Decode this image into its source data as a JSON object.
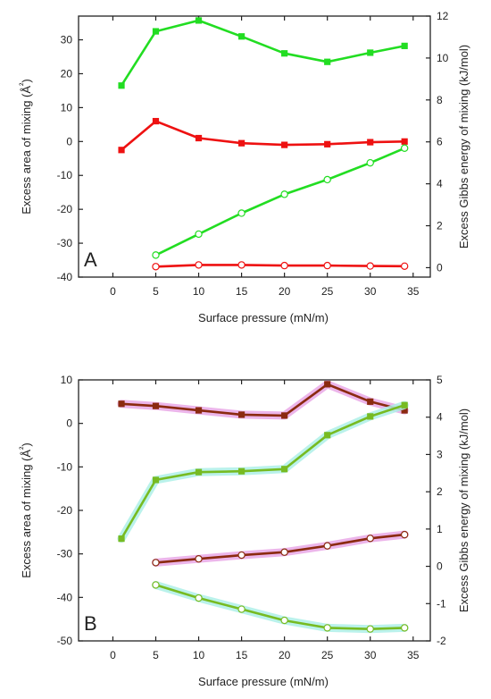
{
  "chart_data": [
    {
      "type": "line",
      "panel_label": "A",
      "xlabel": "Surface pressure (mN/m)",
      "ylabel_left": "Excess area of mixing (Å²)",
      "ylabel_right": "Excess Gibbs energy of mixing (kJ/mol)",
      "xlim": [
        -4,
        37
      ],
      "ylim_left": [
        -40,
        37
      ],
      "ylim_right": [
        -0.45,
        12
      ],
      "x_ticks": [
        0,
        5,
        10,
        15,
        20,
        25,
        30,
        35
      ],
      "y_ticks_left": [
        -40,
        -30,
        -20,
        -10,
        0,
        10,
        20,
        30
      ],
      "y_ticks_right": [
        0,
        2,
        4,
        6,
        8,
        10,
        12
      ],
      "grid": false,
      "series": [
        {
          "axis": "left",
          "marker": "square-filled",
          "color": "#22dd22",
          "x": [
            1,
            5,
            10,
            15,
            20,
            25,
            30,
            34
          ],
          "y": [
            16.5,
            32.5,
            35.7,
            31,
            26,
            23.5,
            26.2,
            28.2
          ]
        },
        {
          "axis": "left",
          "marker": "square-filled",
          "color": "#ee1111",
          "x": [
            1,
            5,
            10,
            15,
            20,
            25,
            30,
            34
          ],
          "y": [
            -2.5,
            6,
            1,
            -0.5,
            -1,
            -0.8,
            -0.2,
            0
          ]
        },
        {
          "axis": "right",
          "marker": "circle-open",
          "color": "#22dd22",
          "x": [
            5,
            10,
            15,
            20,
            25,
            30,
            34
          ],
          "y": [
            0.6,
            1.6,
            2.6,
            3.5,
            4.2,
            5.0,
            5.7
          ]
        },
        {
          "axis": "right",
          "marker": "circle-open",
          "color": "#ee1111",
          "x": [
            5,
            10,
            15,
            20,
            25,
            30,
            34
          ],
          "y": [
            0.05,
            0.13,
            0.13,
            0.1,
            0.1,
            0.08,
            0.07
          ]
        }
      ]
    },
    {
      "type": "line",
      "panel_label": "B",
      "xlabel": "Surface pressure (mN/m)",
      "ylabel_left": "Excess area of mixing (Å²)",
      "ylabel_right": "Excess Gibbs energy of mixing (kJ/mol)",
      "xlim": [
        -4,
        37
      ],
      "ylim_left": [
        -50,
        10
      ],
      "ylim_right": [
        -2,
        5
      ],
      "x_ticks": [
        0,
        5,
        10,
        15,
        20,
        25,
        30,
        35
      ],
      "y_ticks_left": [
        -50,
        -40,
        -30,
        -20,
        -10,
        0,
        10
      ],
      "y_ticks_right": [
        -2,
        -1,
        0,
        1,
        2,
        3,
        4,
        5
      ],
      "grid": false,
      "series": [
        {
          "axis": "left",
          "marker": "square-filled",
          "color": "#8b2a10",
          "glow": "#e9a8e6",
          "x": [
            1,
            5,
            10,
            15,
            20,
            25,
            30,
            34
          ],
          "y": [
            4.5,
            4,
            3,
            2,
            1.8,
            9,
            5,
            3
          ]
        },
        {
          "axis": "left",
          "marker": "square-filled",
          "color": "#77bb22",
          "glow": "#aef0e8",
          "x": [
            1,
            5,
            10,
            15,
            20,
            25,
            30,
            34
          ],
          "y": [
            -26.5,
            -13,
            -11.2,
            -11,
            -10.5,
            -2.7,
            1.6,
            4.2
          ]
        },
        {
          "axis": "right",
          "marker": "circle-open",
          "color": "#8b2a10",
          "glow": "#e9a8e6",
          "x": [
            5,
            10,
            15,
            20,
            25,
            30,
            34
          ],
          "y": [
            0.1,
            0.2,
            0.3,
            0.38,
            0.55,
            0.75,
            0.85
          ]
        },
        {
          "axis": "right",
          "marker": "circle-open",
          "color": "#77bb22",
          "glow": "#aef0e8",
          "x": [
            5,
            10,
            15,
            20,
            25,
            30,
            34
          ],
          "y": [
            -0.5,
            -0.85,
            -1.15,
            -1.45,
            -1.65,
            -1.68,
            -1.65
          ]
        }
      ]
    }
  ]
}
